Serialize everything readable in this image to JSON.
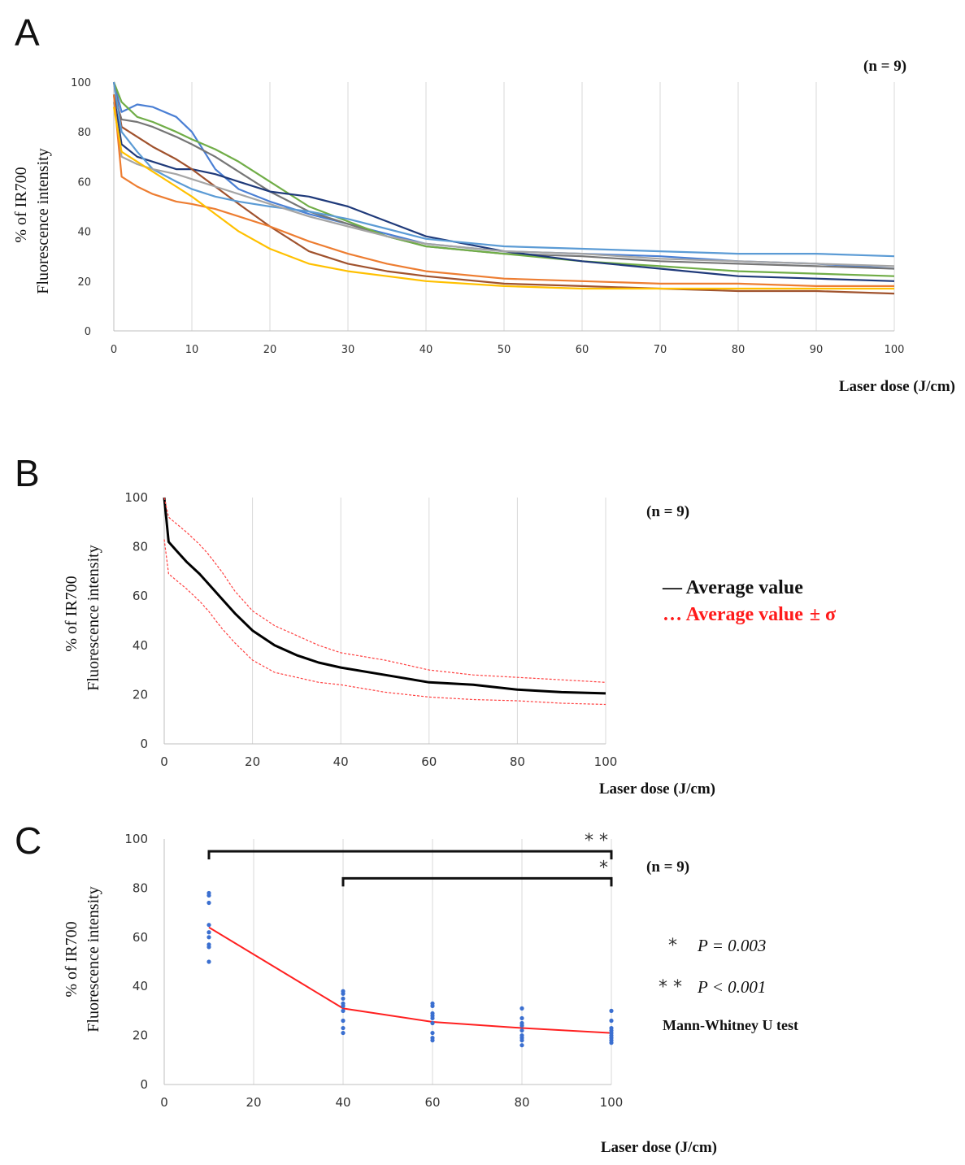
{
  "chart_data": [
    {
      "panel": "A",
      "type": "line",
      "n_label": "(n = 9)",
      "xlabel": "Laser dose  (J/cm)",
      "ylabel_line1": "% of IR700",
      "ylabel_line2": "Fluorescence intensity",
      "xlim": [
        0,
        100
      ],
      "ylim": [
        0,
        100
      ],
      "xticks": [
        0,
        10,
        20,
        30,
        40,
        50,
        60,
        70,
        80,
        90,
        100
      ],
      "yticks": [
        0,
        20,
        40,
        60,
        80,
        100
      ],
      "grid": "vertical",
      "x": [
        0,
        1,
        3,
        5,
        8,
        10,
        13,
        16,
        20,
        25,
        30,
        35,
        40,
        50,
        60,
        70,
        80,
        90,
        100
      ],
      "series": [
        {
          "name": "light blue (upper)",
          "color": "#4a7fd4",
          "values": [
            100,
            88,
            91,
            90,
            86,
            80,
            65,
            57,
            52,
            47,
            43,
            39,
            35,
            32,
            31,
            30,
            28,
            27,
            25
          ]
        },
        {
          "name": "gray (upper)",
          "color": "#767676",
          "values": [
            95,
            85,
            84,
            82,
            78,
            75,
            70,
            64,
            56,
            48,
            43,
            38,
            34,
            31,
            30,
            28,
            27,
            26,
            25
          ]
        },
        {
          "name": "green",
          "color": "#70ad47",
          "values": [
            100,
            92,
            86,
            84,
            80,
            77,
            73,
            68,
            60,
            50,
            44,
            38,
            34,
            31,
            28,
            26,
            24,
            23,
            22
          ]
        },
        {
          "name": "navy",
          "color": "#1f3a7a",
          "values": [
            95,
            75,
            70,
            68,
            65,
            65,
            63,
            60,
            56,
            54,
            50,
            44,
            38,
            32,
            28,
            25,
            22,
            21,
            20
          ]
        },
        {
          "name": "brown",
          "color": "#a0522d",
          "values": [
            100,
            82,
            78,
            74,
            69,
            65,
            58,
            51,
            42,
            32,
            27,
            24,
            22,
            19,
            18,
            17,
            16,
            16,
            15
          ]
        },
        {
          "name": "sky blue",
          "color": "#5b9bd5",
          "values": [
            100,
            80,
            72,
            65,
            60,
            57,
            54,
            52,
            50,
            48,
            45,
            41,
            37,
            34,
            33,
            32,
            31,
            31,
            30
          ]
        },
        {
          "name": "light gray",
          "color": "#a5a5a5",
          "values": [
            92,
            70,
            67,
            65,
            63,
            61,
            58,
            55,
            51,
            46,
            42,
            38,
            35,
            32,
            31,
            29,
            28,
            27,
            26
          ]
        },
        {
          "name": "orange",
          "color": "#ed7d31",
          "values": [
            95,
            62,
            58,
            55,
            52,
            51,
            49,
            46,
            42,
            36,
            31,
            27,
            24,
            21,
            20,
            19,
            19,
            18,
            18
          ]
        },
        {
          "name": "yellow",
          "color": "#ffc000",
          "values": [
            90,
            72,
            68,
            64,
            58,
            54,
            47,
            40,
            33,
            27,
            24,
            22,
            20,
            18,
            17,
            17,
            17,
            17,
            17
          ]
        }
      ]
    },
    {
      "panel": "B",
      "type": "line",
      "n_label": "(n = 9)",
      "xlabel": "Laser dose  (J/cm)",
      "ylabel_line1": "% of IR700",
      "ylabel_line2": "Fluorescence intensity",
      "xlim": [
        0,
        100
      ],
      "ylim": [
        0,
        100
      ],
      "xticks": [
        0,
        20,
        40,
        60,
        80,
        100
      ],
      "yticks": [
        0,
        20,
        40,
        60,
        80,
        100
      ],
      "grid": "vertical",
      "x": [
        0,
        1,
        3,
        5,
        8,
        10,
        13,
        16,
        20,
        25,
        30,
        35,
        40,
        50,
        60,
        70,
        80,
        90,
        100
      ],
      "legend": {
        "mean_label": "— Average value",
        "band_label_prefix": "… Average value",
        "band_symbol": "± σ",
        "placement": "right"
      },
      "series": [
        {
          "name": "Average value",
          "color": "#000000",
          "values": [
            100,
            82,
            78,
            74,
            69,
            65,
            59,
            53,
            46,
            40,
            36,
            33,
            31,
            28,
            25,
            24,
            22,
            21,
            20.5
          ]
        },
        {
          "name": "Average value + σ",
          "color": "#ff4040",
          "values": [
            100,
            92,
            89,
            86,
            81,
            77,
            70,
            62,
            54,
            48,
            44,
            40,
            37,
            34,
            30,
            28,
            27,
            26,
            25
          ]
        },
        {
          "name": "Average value - σ",
          "color": "#ff4040",
          "values": [
            83,
            69,
            66,
            63,
            58,
            54,
            47,
            41,
            34,
            29,
            27,
            25,
            24,
            21,
            19,
            18,
            17.5,
            16.5,
            16
          ]
        }
      ]
    },
    {
      "panel": "C",
      "type": "scatter",
      "n_label": "(n = 9)",
      "xlabel": "Laser dose  (J/cm)",
      "ylabel_line1": "% of IR700",
      "ylabel_line2": "Fluorescence intensity",
      "xlim": [
        0,
        100
      ],
      "ylim": [
        0,
        100
      ],
      "xticks": [
        0,
        20,
        40,
        60,
        80,
        100
      ],
      "yticks": [
        0,
        20,
        40,
        60,
        80,
        100
      ],
      "grid": "vertical",
      "points": [
        {
          "x": 10,
          "values": [
            78,
            77,
            74,
            65,
            62,
            60,
            57,
            56,
            50
          ]
        },
        {
          "x": 40,
          "values": [
            38,
            37,
            35,
            33,
            32,
            30,
            26,
            23,
            21
          ]
        },
        {
          "x": 60,
          "values": [
            33,
            32,
            29,
            28,
            27,
            25,
            21,
            19,
            18
          ]
        },
        {
          "x": 80,
          "values": [
            31,
            27,
            25,
            24,
            22,
            20,
            19,
            18,
            16
          ]
        },
        {
          "x": 100,
          "values": [
            30,
            26,
            23,
            22,
            21,
            20,
            19,
            18,
            17
          ]
        }
      ],
      "mean_line": {
        "x": [
          10,
          40,
          60,
          80,
          100
        ],
        "values": [
          64,
          31,
          25.5,
          23,
          21
        ],
        "color": "#ff2020"
      },
      "point_color": "#3b6fd0",
      "brackets": [
        {
          "from": 10,
          "to": 100,
          "level": 95,
          "stars": "* *"
        },
        {
          "from": 40,
          "to": 100,
          "level": 84,
          "stars": "*"
        }
      ],
      "stats": [
        {
          "stars": "*",
          "text": "P = 0.003"
        },
        {
          "stars": "* *",
          "text": "P < 0.001"
        }
      ],
      "test_name": "Mann-Whitney  U test"
    }
  ],
  "panel_labels": [
    "A",
    "B",
    "C"
  ]
}
